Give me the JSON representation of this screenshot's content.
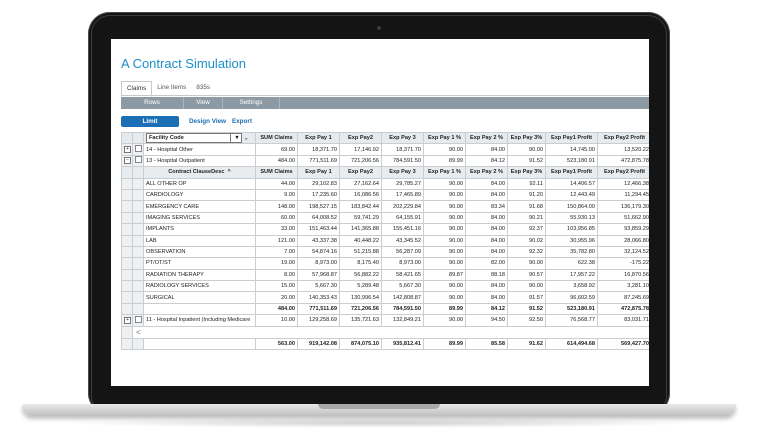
{
  "title": "A Contract Simulation",
  "tabs": [
    "Claims",
    "Line Items",
    "835s"
  ],
  "menu": [
    "Rows",
    "View",
    "Settings"
  ],
  "toolbar": {
    "limit": "Limit",
    "design_view": "Design View",
    "export": "Export"
  },
  "table": {
    "facility_select": "Facility Code",
    "columns": [
      "SUM Claims",
      "Exp Pay 1",
      "Exp Pay2",
      "Exp Pay 3",
      "Exp Pay 1 %",
      "Exp Pay 2 %",
      "Exp Pay 3%",
      "Exp Pay1 Profit",
      "Exp Pay2 Profit"
    ],
    "groups": [
      {
        "expander": "+",
        "label": "14 - Hospital Other",
        "values": [
          "69.00",
          "18,371.70",
          "17,146.92",
          "18,371.70",
          "90.00",
          "84.00",
          "90.00",
          "14,745.00",
          "13,520.22"
        ]
      },
      {
        "expander": "−",
        "label": "13 - Hospital Outpatient",
        "values": [
          "484.00",
          "771,511.69",
          "721,206.56",
          "784,591.50",
          "89.99",
          "84.12",
          "91.52",
          "523,180.91",
          "472,875.78"
        ]
      }
    ],
    "sub_header": {
      "label": "Contract ClauseDesc",
      "sort_icon": "^",
      "columns": [
        "SUM Claims",
        "Exp Pay 1",
        "Exp Pay2",
        "Exp Pay 3",
        "Exp Pay 1 %",
        "Exp Pay 2 %",
        "Exp Pay 3%",
        "Exp Pay1 Profit",
        "Exp Pay2 Profit"
      ]
    },
    "detail_rows": [
      {
        "label": "ALL OTHER OP",
        "values": [
          "44.00",
          "29,102.83",
          "27,162.64",
          "29,785.27",
          "90.00",
          "84.00",
          "92.11",
          "14,406.57",
          "12,466.38"
        ]
      },
      {
        "label": "CARDIOLOGY",
        "values": [
          "9.00",
          "17,235.60",
          "16,086.56",
          "17,465.89",
          "90.00",
          "84.00",
          "91.20",
          "12,443.49",
          "11,294.45"
        ]
      },
      {
        "label": "EMERGENCY CARE",
        "values": [
          "148.00",
          "198,527.15",
          "183,842.44",
          "202,229.84",
          "90.00",
          "83.34",
          "91.68",
          "150,864.00",
          "136,179.30"
        ]
      },
      {
        "label": "IMAGING SERVICES",
        "values": [
          "60.00",
          "64,008.52",
          "59,741.29",
          "64,155.91",
          "90.00",
          "84.00",
          "90.21",
          "55,930.13",
          "51,662.90"
        ]
      },
      {
        "label": "IMPLANTS",
        "values": [
          "33.00",
          "151,463.44",
          "141,365.88",
          "155,451.16",
          "90.00",
          "84.00",
          "92.37",
          "103,956.85",
          "93,859.29"
        ]
      },
      {
        "label": "LAB",
        "values": [
          "121.00",
          "43,337.38",
          "40,448.22",
          "43,345.52",
          "90.00",
          "84.00",
          "90.02",
          "30,955.96",
          "28,066.80"
        ]
      },
      {
        "label": "OBSERVATION",
        "values": [
          "7.00",
          "54,874.16",
          "51,215.88",
          "56,287.09",
          "90.00",
          "84.00",
          "92.32",
          "35,782.80",
          "32,124.52"
        ]
      },
      {
        "label": "PT/OT/ST",
        "values": [
          "19.00",
          "8,973.00",
          "8,175.40",
          "8,973.00",
          "90.00",
          "82.00",
          "90.00",
          "622.38",
          "-175.22"
        ]
      },
      {
        "label": "RADIATION THERAPY",
        "values": [
          "8.00",
          "57,968.87",
          "56,882.22",
          "58,421.65",
          "89.87",
          "88.18",
          "90.57",
          "17,957.22",
          "16,870.56"
        ]
      },
      {
        "label": "RADIOLOGY SERVICES",
        "values": [
          "15.00",
          "5,667.30",
          "5,289.48",
          "5,667.30",
          "90.00",
          "84.00",
          "90.00",
          "3,658.92",
          "3,281.10"
        ]
      },
      {
        "label": "SURGICAL",
        "values": [
          "20.00",
          "140,353.43",
          "130,996.54",
          "142,808.87",
          "90.00",
          "84.00",
          "91.57",
          "96,602.59",
          "87,245.69"
        ]
      }
    ],
    "group_total": [
      "484.00",
      "771,511.69",
      "721,206.56",
      "784,591.50",
      "89.99",
      "84.12",
      "91.52",
      "523,180.91",
      "472,875.78"
    ],
    "group3": {
      "expander": "+",
      "label": "11 - Hospital Inpatient (Including Medicare",
      "values": [
        "10.00",
        "129,258.69",
        "135,721.63",
        "132,849.21",
        "90.00",
        "94.50",
        "92.50",
        "76,568.77",
        "83,031.71"
      ]
    },
    "scroll_icon": "<",
    "grand_total": [
      "563.00",
      "919,142.08",
      "874,075.10",
      "935,812.41",
      "89.99",
      "85.58",
      "91.62",
      "614,494.68",
      "569,427.70"
    ]
  }
}
